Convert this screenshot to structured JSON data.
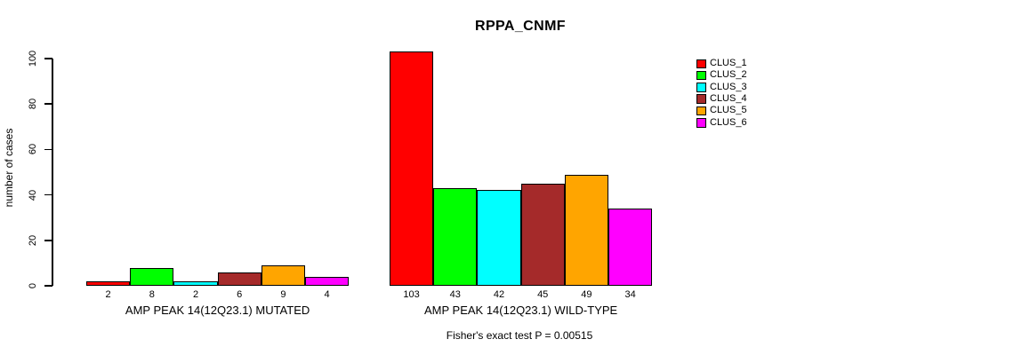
{
  "background_color": "#ffffff",
  "chart_data": {
    "type": "bar",
    "title": "RPPA_CNMF",
    "ylabel": "number of cases",
    "xlabel": "",
    "ylim": [
      0,
      100
    ],
    "yticks": [
      0,
      20,
      40,
      60,
      80,
      100
    ],
    "grid": false,
    "bar_border_color": "#000000",
    "series_colors": [
      "#ff0000",
      "#00ff00",
      "#00ffff",
      "#a52a2a",
      "#ffa500",
      "#ff00ff"
    ],
    "legend": {
      "position": "right",
      "entries": [
        "CLUS_1",
        "CLUS_2",
        "CLUS_3",
        "CLUS_4",
        "CLUS_5",
        "CLUS_6"
      ]
    },
    "groups": [
      {
        "label": "AMP PEAK 14(12Q23.1) MUTATED",
        "values": [
          2,
          8,
          2,
          6,
          9,
          4
        ]
      },
      {
        "label": "AMP PEAK 14(12Q23.1) WILD-TYPE",
        "values": [
          103,
          43,
          42,
          45,
          49,
          34
        ]
      }
    ],
    "footnote": "Fisher's exact test P = 0.00515"
  }
}
